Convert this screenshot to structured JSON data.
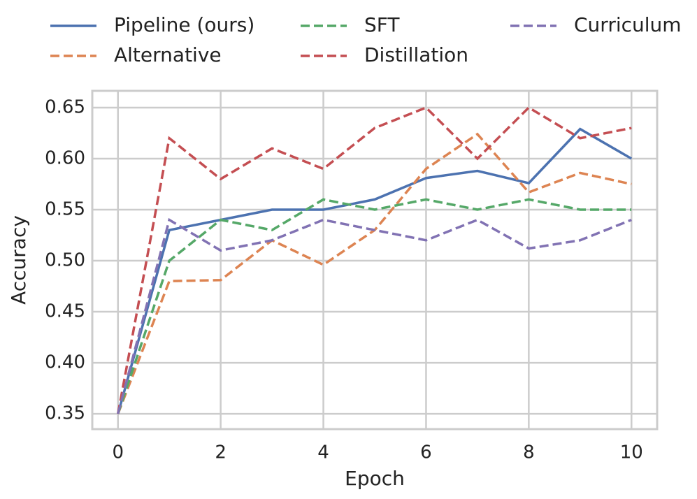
{
  "chart_data": {
    "type": "line",
    "x_label": "Epoch",
    "y_label": "Accuracy",
    "x": [
      0,
      1,
      2,
      3,
      4,
      5,
      6,
      7,
      8,
      9,
      10
    ],
    "xlim": [
      -0.5,
      10.5
    ],
    "xticks": [
      0,
      2,
      4,
      6,
      8,
      10
    ],
    "ylim": [
      0.335,
      0.6664
    ],
    "yticks": [
      0.35,
      {
        "value": 0.4,
        "label": "0.40"
      },
      0.45,
      {
        "value": 0.5,
        "label": "0.50"
      },
      0.55,
      {
        "value": 0.6,
        "label": "0.60"
      },
      0.65
    ],
    "grid": true,
    "legend": "top",
    "series": [
      {
        "name": "Pipeline (ours)",
        "color": "#4c72b0",
        "linestyle": "solid",
        "values": [
          0.35,
          0.53,
          0.54,
          0.55,
          0.55,
          0.56,
          0.581,
          0.588,
          0.576,
          0.629,
          0.6
        ]
      },
      {
        "name": "Alternative",
        "color": "#dd8452",
        "linestyle": "dashed",
        "values": [
          0.35,
          0.48,
          0.481,
          0.52,
          0.496,
          0.53,
          0.59,
          0.624,
          0.567,
          0.586,
          0.575
        ]
      },
      {
        "name": "SFT",
        "color": "#55a868",
        "linestyle": "dashed",
        "values": [
          0.35,
          0.5,
          0.54,
          0.53,
          0.56,
          0.55,
          0.56,
          0.55,
          0.56,
          0.55,
          0.55
        ]
      },
      {
        "name": "Distillation",
        "color": "#c44e52",
        "linestyle": "dashed",
        "values": [
          0.35,
          0.62,
          0.58,
          0.61,
          0.59,
          0.63,
          0.65,
          0.6,
          0.65,
          0.62,
          0.63
        ]
      },
      {
        "name": "Curriculum",
        "color": "#8172b3",
        "linestyle": "dashed",
        "values": [
          0.35,
          0.54,
          0.51,
          0.52,
          0.54,
          0.53,
          0.52,
          0.54,
          0.512,
          0.52,
          0.54
        ]
      }
    ]
  }
}
